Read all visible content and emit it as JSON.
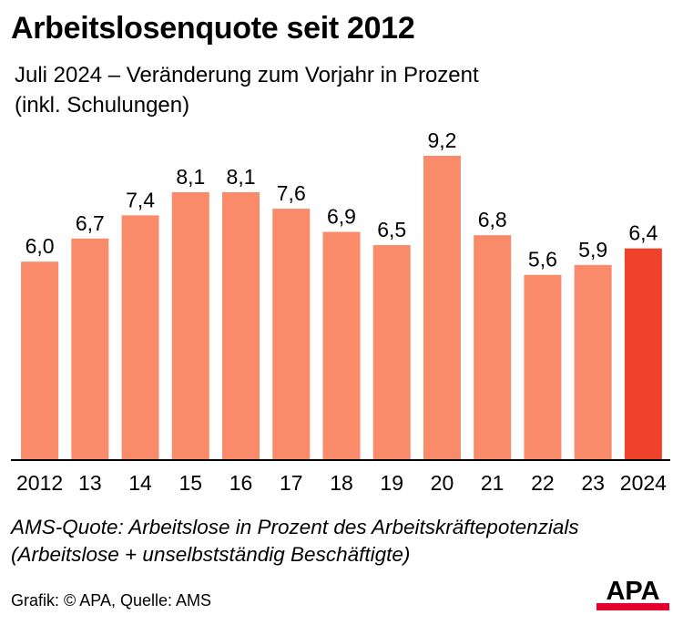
{
  "header": {
    "title": "Arbeitslosenquote seit 2012",
    "subtitle_line1": "Juli 2024 – Veränderung zum Vorjahr in Prozent",
    "subtitle_line2": "(inkl. Schulungen)"
  },
  "chart_data": {
    "type": "bar",
    "categories": [
      "2012",
      "13",
      "14",
      "15",
      "16",
      "17",
      "18",
      "19",
      "20",
      "21",
      "22",
      "23",
      "2024"
    ],
    "values": [
      6.0,
      6.7,
      7.4,
      8.1,
      8.1,
      7.6,
      6.9,
      6.5,
      9.2,
      6.8,
      5.6,
      5.9,
      6.4
    ],
    "value_labels": [
      "6,0",
      "6,7",
      "7,4",
      "8,1",
      "8,1",
      "7,6",
      "6,9",
      "6,5",
      "9,2",
      "6,8",
      "5,6",
      "5,9",
      "6,4"
    ],
    "ylim": [
      0,
      10
    ],
    "grid": false,
    "colors": {
      "bar": "#f98a6a",
      "highlight": "#f0412a",
      "baseline": "#000000"
    },
    "highlight_index": 12
  },
  "footer": {
    "note_line1": "AMS-Quote: Arbeitslose in Prozent des Arbeitskräftepotenzials",
    "note_line2": "(Arbeitslose + unselbstständig Beschäftigte)",
    "credit": "Grafik: © APA, Quelle: AMS",
    "logo": "APA",
    "logo_color": "#e4002b"
  }
}
